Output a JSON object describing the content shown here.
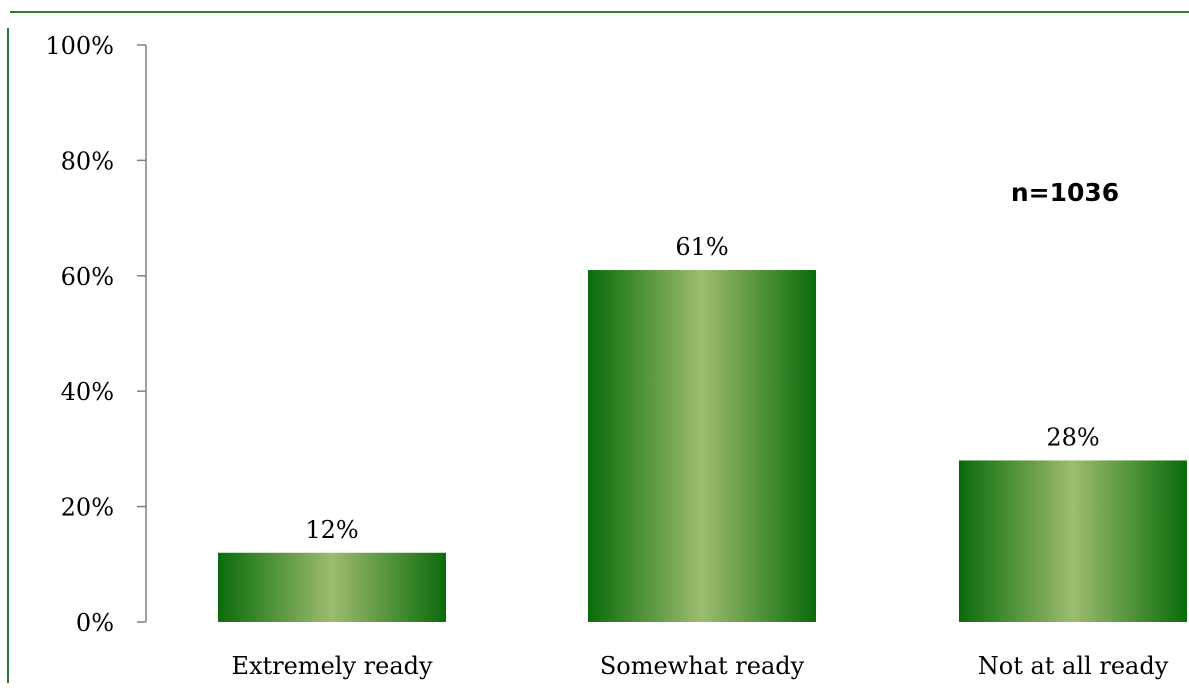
{
  "chart_data": {
    "type": "bar",
    "categories": [
      "Extremely ready",
      "Somewhat ready",
      "Not at all ready"
    ],
    "values": [
      12,
      61,
      28
    ],
    "value_labels": [
      "12%",
      "61%",
      "28%"
    ],
    "title": "",
    "xlabel": "",
    "ylabel": "",
    "ylim": [
      0,
      100
    ],
    "yticks": [
      0,
      20,
      40,
      60,
      80,
      100
    ],
    "ytick_labels": [
      "0%",
      "20%",
      "40%",
      "60%",
      "80%",
      "100%"
    ],
    "annotation": "n=1036",
    "grid": false,
    "legend": "none",
    "colors": {
      "bar_edge": "#0a6b0a",
      "bar_center": "#9dbc6e",
      "frame": "#2e7d2e",
      "annotation": "#1a2e6e",
      "axis": "#808080"
    }
  }
}
